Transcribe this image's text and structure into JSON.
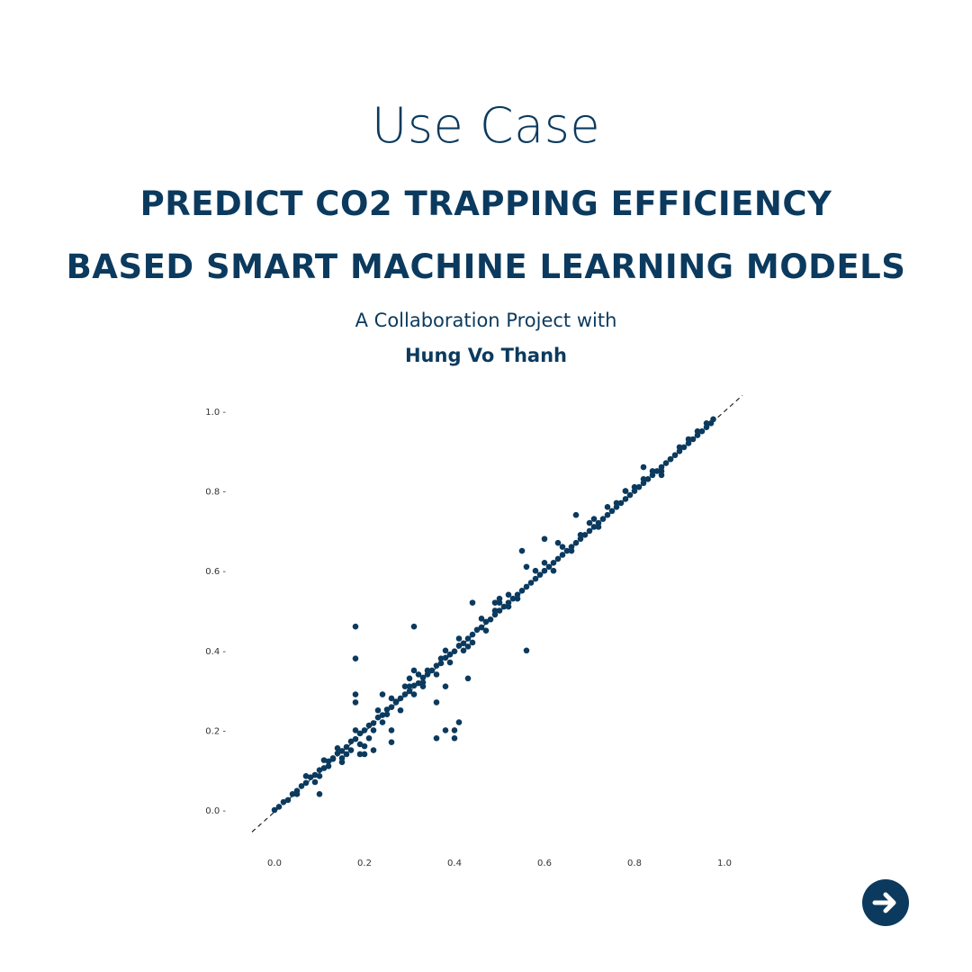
{
  "header": {
    "kicker": "Use Case",
    "headline_line1": "PREDICT CO2 TRAPPING EFFICIENCY",
    "headline_line2": "BASED SMART MACHINE LEARNING MODELS",
    "collab_text": "A Collaboration Project with",
    "person": "Hung Vo Thanh"
  },
  "colors": {
    "brand": "#0b3a5e",
    "point": "#0b3a5e",
    "reference_line": "#222222"
  },
  "nav": {
    "next_icon": "arrow-right-icon"
  },
  "chart_data": {
    "type": "scatter",
    "title": "",
    "xlabel": "",
    "ylabel": "",
    "xlim": [
      -0.05,
      1.04
    ],
    "ylim": [
      -0.055,
      1.04
    ],
    "x_ticks": [
      "0.0",
      "0.2",
      "0.4",
      "0.6",
      "0.8",
      "1.0"
    ],
    "y_ticks": [
      "0.0 -",
      "0.2 -",
      "0.4 -",
      "0.6 -",
      "0.8 -",
      "1.0 -"
    ],
    "x_tick_values": [
      0.0,
      0.2,
      0.4,
      0.6,
      0.8,
      1.0
    ],
    "y_tick_values": [
      0.0,
      0.2,
      0.4,
      0.6,
      0.8,
      1.0
    ],
    "grid": false,
    "reference_line": {
      "style": "dashed",
      "from": [
        -0.05,
        -0.055
      ],
      "to": [
        1.04,
        1.04
      ]
    },
    "series": [
      {
        "values_on_line": [
          [
            0.0,
            0.0
          ],
          [
            0.01,
            0.008
          ],
          [
            0.02,
            0.02
          ],
          [
            0.03,
            0.025
          ],
          [
            0.04,
            0.04
          ],
          [
            0.05,
            0.048
          ],
          [
            0.06,
            0.06
          ],
          [
            0.07,
            0.068
          ],
          [
            0.08,
            0.082
          ],
          [
            0.09,
            0.088
          ],
          [
            0.1,
            0.1
          ],
          [
            0.11,
            0.105
          ],
          [
            0.12,
            0.122
          ],
          [
            0.13,
            0.128
          ],
          [
            0.14,
            0.142
          ],
          [
            0.15,
            0.148
          ],
          [
            0.16,
            0.158
          ],
          [
            0.17,
            0.172
          ],
          [
            0.18,
            0.178
          ],
          [
            0.19,
            0.192
          ],
          [
            0.2,
            0.2
          ],
          [
            0.21,
            0.212
          ],
          [
            0.22,
            0.218
          ],
          [
            0.23,
            0.232
          ],
          [
            0.24,
            0.238
          ],
          [
            0.25,
            0.252
          ],
          [
            0.26,
            0.258
          ],
          [
            0.27,
            0.272
          ],
          [
            0.28,
            0.28
          ],
          [
            0.29,
            0.29
          ],
          [
            0.3,
            0.298
          ],
          [
            0.31,
            0.312
          ],
          [
            0.32,
            0.318
          ],
          [
            0.33,
            0.332
          ],
          [
            0.34,
            0.34
          ],
          [
            0.35,
            0.35
          ],
          [
            0.36,
            0.362
          ],
          [
            0.37,
            0.368
          ],
          [
            0.38,
            0.382
          ],
          [
            0.39,
            0.39
          ],
          [
            0.4,
            0.398
          ],
          [
            0.41,
            0.412
          ],
          [
            0.42,
            0.418
          ],
          [
            0.43,
            0.43
          ],
          [
            0.44,
            0.44
          ],
          [
            0.45,
            0.452
          ],
          [
            0.46,
            0.458
          ],
          [
            0.47,
            0.472
          ],
          [
            0.48,
            0.478
          ],
          [
            0.49,
            0.49
          ],
          [
            0.5,
            0.5
          ],
          [
            0.51,
            0.51
          ],
          [
            0.52,
            0.52
          ],
          [
            0.53,
            0.53
          ],
          [
            0.54,
            0.54
          ],
          [
            0.55,
            0.55
          ],
          [
            0.56,
            0.56
          ],
          [
            0.57,
            0.57
          ],
          [
            0.58,
            0.58
          ],
          [
            0.59,
            0.59
          ],
          [
            0.6,
            0.6
          ],
          [
            0.61,
            0.61
          ],
          [
            0.62,
            0.62
          ],
          [
            0.63,
            0.63
          ],
          [
            0.64,
            0.64
          ],
          [
            0.65,
            0.65
          ],
          [
            0.66,
            0.66
          ],
          [
            0.67,
            0.67
          ],
          [
            0.68,
            0.68
          ],
          [
            0.69,
            0.69
          ],
          [
            0.7,
            0.7
          ],
          [
            0.71,
            0.71
          ],
          [
            0.72,
            0.72
          ],
          [
            0.73,
            0.73
          ],
          [
            0.74,
            0.74
          ],
          [
            0.75,
            0.75
          ],
          [
            0.76,
            0.76
          ],
          [
            0.77,
            0.77
          ],
          [
            0.78,
            0.78
          ],
          [
            0.79,
            0.79
          ],
          [
            0.8,
            0.8
          ],
          [
            0.81,
            0.81
          ],
          [
            0.82,
            0.82
          ],
          [
            0.83,
            0.83
          ],
          [
            0.84,
            0.84
          ],
          [
            0.85,
            0.85
          ],
          [
            0.86,
            0.86
          ],
          [
            0.87,
            0.87
          ],
          [
            0.88,
            0.88
          ],
          [
            0.89,
            0.89
          ],
          [
            0.9,
            0.9
          ],
          [
            0.91,
            0.91
          ],
          [
            0.92,
            0.92
          ],
          [
            0.93,
            0.93
          ],
          [
            0.94,
            0.94
          ],
          [
            0.95,
            0.95
          ],
          [
            0.96,
            0.96
          ],
          [
            0.97,
            0.97
          ],
          [
            0.975,
            0.98
          ]
        ],
        "values_near_line": [
          [
            0.05,
            0.04
          ],
          [
            0.07,
            0.085
          ],
          [
            0.09,
            0.07
          ],
          [
            0.1,
            0.085
          ],
          [
            0.11,
            0.125
          ],
          [
            0.12,
            0.11
          ],
          [
            0.14,
            0.155
          ],
          [
            0.15,
            0.13
          ],
          [
            0.16,
            0.14
          ],
          [
            0.17,
            0.15
          ],
          [
            0.18,
            0.2
          ],
          [
            0.19,
            0.165
          ],
          [
            0.2,
            0.16
          ],
          [
            0.21,
            0.18
          ],
          [
            0.22,
            0.2
          ],
          [
            0.23,
            0.25
          ],
          [
            0.24,
            0.22
          ],
          [
            0.25,
            0.24
          ],
          [
            0.26,
            0.28
          ],
          [
            0.27,
            0.27
          ],
          [
            0.28,
            0.25
          ],
          [
            0.29,
            0.31
          ],
          [
            0.3,
            0.31
          ],
          [
            0.31,
            0.29
          ],
          [
            0.32,
            0.34
          ],
          [
            0.33,
            0.31
          ],
          [
            0.34,
            0.35
          ],
          [
            0.36,
            0.34
          ],
          [
            0.37,
            0.38
          ],
          [
            0.38,
            0.4
          ],
          [
            0.39,
            0.37
          ],
          [
            0.41,
            0.43
          ],
          [
            0.42,
            0.4
          ],
          [
            0.44,
            0.42
          ],
          [
            0.46,
            0.48
          ],
          [
            0.47,
            0.45
          ],
          [
            0.49,
            0.5
          ],
          [
            0.5,
            0.52
          ],
          [
            0.52,
            0.51
          ],
          [
            0.54,
            0.53
          ],
          [
            0.58,
            0.6
          ],
          [
            0.6,
            0.62
          ],
          [
            0.62,
            0.6
          ],
          [
            0.64,
            0.66
          ],
          [
            0.66,
            0.65
          ],
          [
            0.68,
            0.69
          ],
          [
            0.7,
            0.72
          ],
          [
            0.72,
            0.71
          ],
          [
            0.74,
            0.76
          ],
          [
            0.76,
            0.77
          ],
          [
            0.78,
            0.8
          ],
          [
            0.8,
            0.81
          ],
          [
            0.82,
            0.83
          ],
          [
            0.84,
            0.85
          ],
          [
            0.86,
            0.85
          ],
          [
            0.88,
            0.88
          ],
          [
            0.9,
            0.91
          ],
          [
            0.92,
            0.93
          ],
          [
            0.94,
            0.95
          ],
          [
            0.96,
            0.97
          ]
        ],
        "outliers": [
          [
            0.1,
            0.04
          ],
          [
            0.13,
            0.13
          ],
          [
            0.15,
            0.12
          ],
          [
            0.18,
            0.46
          ],
          [
            0.18,
            0.38
          ],
          [
            0.18,
            0.29
          ],
          [
            0.18,
            0.27
          ],
          [
            0.19,
            0.14
          ],
          [
            0.2,
            0.14
          ],
          [
            0.22,
            0.15
          ],
          [
            0.24,
            0.29
          ],
          [
            0.26,
            0.17
          ],
          [
            0.26,
            0.2
          ],
          [
            0.3,
            0.33
          ],
          [
            0.31,
            0.46
          ],
          [
            0.31,
            0.35
          ],
          [
            0.33,
            0.32
          ],
          [
            0.36,
            0.27
          ],
          [
            0.36,
            0.18
          ],
          [
            0.38,
            0.2
          ],
          [
            0.38,
            0.31
          ],
          [
            0.4,
            0.2
          ],
          [
            0.4,
            0.18
          ],
          [
            0.41,
            0.22
          ],
          [
            0.43,
            0.33
          ],
          [
            0.43,
            0.41
          ],
          [
            0.44,
            0.52
          ],
          [
            0.49,
            0.52
          ],
          [
            0.5,
            0.53
          ],
          [
            0.52,
            0.54
          ],
          [
            0.55,
            0.65
          ],
          [
            0.56,
            0.4
          ],
          [
            0.56,
            0.61
          ],
          [
            0.6,
            0.68
          ],
          [
            0.63,
            0.67
          ],
          [
            0.67,
            0.74
          ],
          [
            0.71,
            0.73
          ],
          [
            0.78,
            0.8
          ],
          [
            0.82,
            0.86
          ],
          [
            0.86,
            0.84
          ]
        ]
      }
    ]
  }
}
